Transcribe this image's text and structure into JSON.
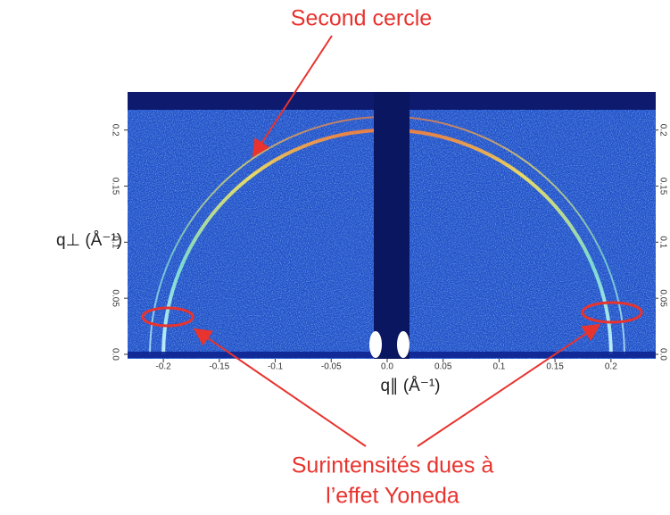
{
  "chart_data": {
    "type": "diffraction-image",
    "xlabel": "q∥ (Å⁻¹)",
    "ylabel": "q⊥ (Å⁻¹)",
    "xlim": [
      -0.232,
      0.24
    ],
    "ylim": [
      -0.004,
      0.234
    ],
    "xticks": [
      -0.2,
      -0.15,
      -0.1,
      -0.05,
      {
        "value": 0,
        "label": "0.0"
      },
      0.05,
      0.1,
      0.15,
      0.2
    ],
    "yticks": [
      {
        "value": 0,
        "label": "0.0"
      },
      0.05,
      0.1,
      0.15,
      0.2
    ],
    "rings": [
      {
        "radius": 0.2
      },
      {
        "radius": 0.212
      }
    ],
    "annotations": {
      "second_circle": "Second cercle",
      "yoneda": [
        "Surintensités dues à",
        "l’effet Yoneda"
      ]
    }
  }
}
